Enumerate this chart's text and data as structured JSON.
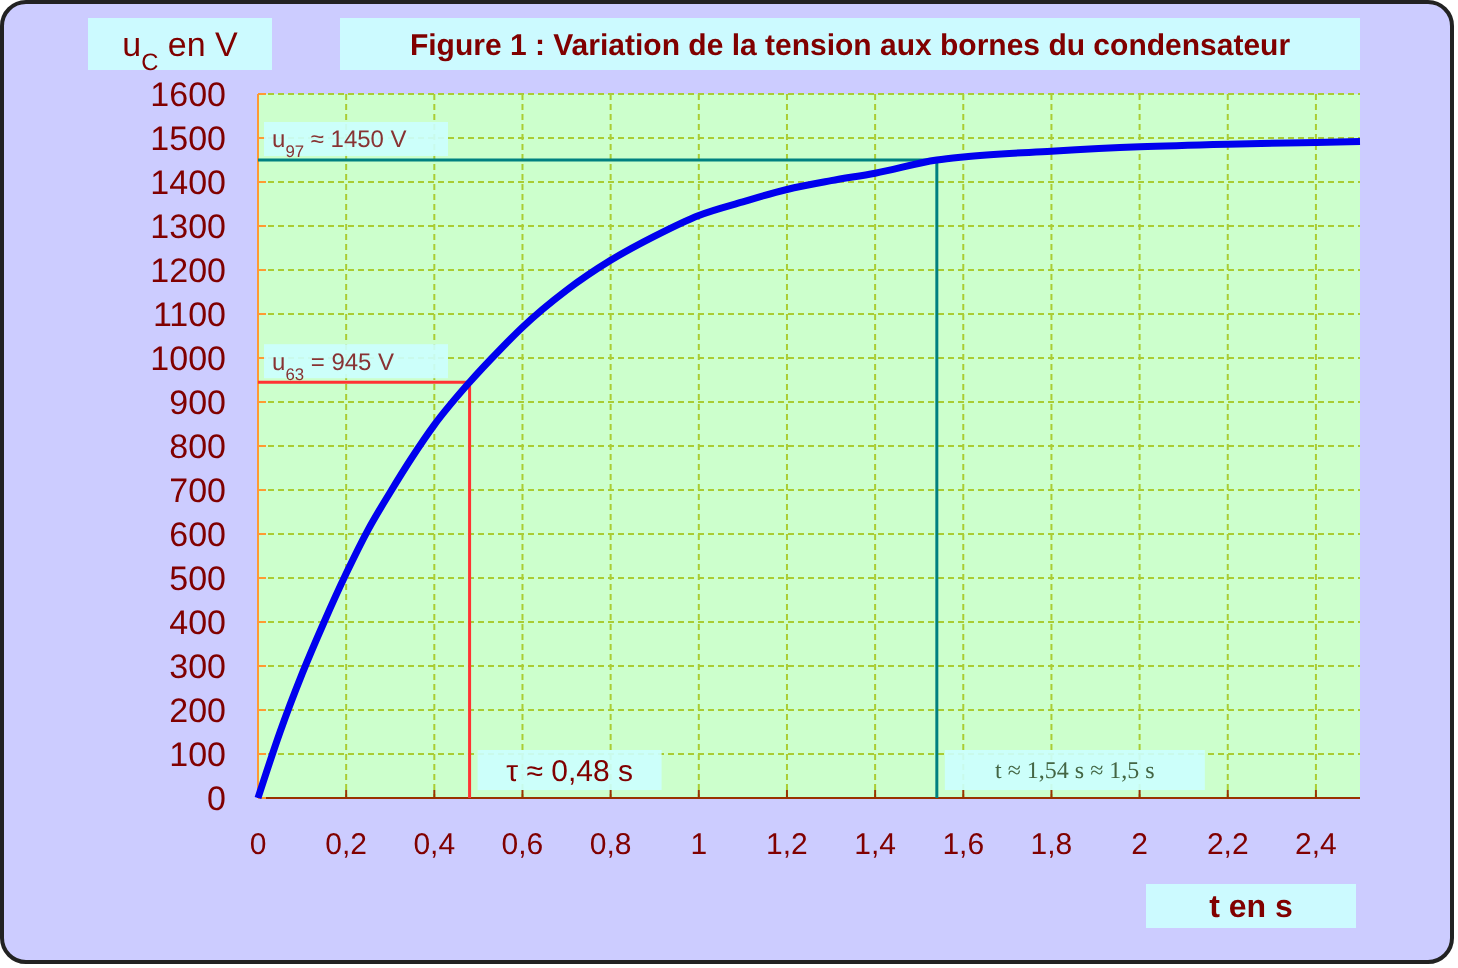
{
  "chart_data": {
    "type": "line",
    "title": "Figure 1 : Variation de la tension aux bornes du condensateur",
    "xlabel": "t en s",
    "ylabel": "u$_{C}$ en V",
    "x": [
      0,
      0.05,
      0.1,
      0.15,
      0.2,
      0.25,
      0.3,
      0.35,
      0.4,
      0.48,
      0.55,
      0.6,
      0.7,
      0.8,
      0.9,
      1.0,
      1.1,
      1.2,
      1.3,
      1.4,
      1.54,
      1.6,
      1.8,
      2.0,
      2.2,
      2.4,
      2.5
    ],
    "series": [
      {
        "color": "#0000ee",
        "values": [
          0,
          150,
          282,
          400,
          510,
          610,
          695,
          775,
          848,
          945,
          1020,
          1070,
          1154,
          1222,
          1277,
          1324,
          1355,
          1383,
          1403,
          1420,
          1450,
          1457,
          1470,
          1480,
          1486,
          1490,
          1492
        ]
      }
    ],
    "xlim": [
      0,
      2.5
    ],
    "ylim": [
      0,
      1600
    ],
    "xticks": [
      0,
      {
        "value": 0.2,
        "label": "0,2"
      },
      {
        "value": 0.4,
        "label": "0,4"
      },
      {
        "value": 0.6,
        "label": "0,6"
      },
      {
        "value": 0.8,
        "label": "0,8"
      },
      1,
      {
        "value": 1.2,
        "label": "1,2"
      },
      {
        "value": 1.4,
        "label": "1,4"
      },
      {
        "value": 1.6,
        "label": "1,6"
      },
      {
        "value": 1.8,
        "label": "1,8"
      },
      2,
      {
        "value": 2.2,
        "label": "2,2"
      },
      {
        "value": 2.4,
        "label": "2,4"
      }
    ],
    "yticks": [
      0,
      100,
      200,
      300,
      400,
      500,
      600,
      700,
      800,
      900,
      1000,
      1100,
      1200,
      1300,
      1400,
      1500,
      1600
    ],
    "ref_lines": [
      {
        "axis": "y",
        "value": 945,
        "label": "u$_{63}$ = 945 V",
        "color": "#ff3333"
      },
      {
        "axis": "x",
        "value": 0.48,
        "label": "τ ≈ 0,48 s",
        "color": "#ff3333"
      },
      {
        "axis": "y",
        "value": 1450,
        "label": "u$_{97}$ ≈ 1450 V",
        "color": "#008080"
      },
      {
        "axis": "x",
        "value": 1.54,
        "label": "t ≈ 1,54 s ≈ 1,5 s",
        "color": "#008080"
      }
    ],
    "grid": true,
    "line_style": "solid",
    "marker": "none"
  }
}
